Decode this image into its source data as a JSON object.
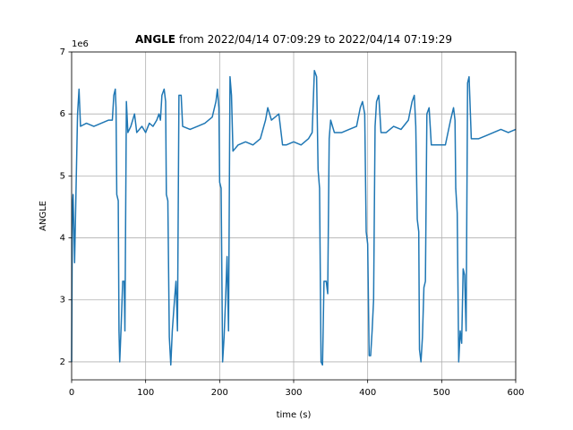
{
  "chart_data": {
    "type": "line",
    "title_bold": "ANGLE",
    "title_rest": " from 2022/04/14 07:09:29 to 2022/04/14 07:19:29",
    "x_label": "time (s)",
    "y_label": "ANGLE",
    "y_offset_label": "1e6",
    "color": "#1f77b4",
    "grid": true,
    "xlim": [
      0,
      600
    ],
    "xticks": [
      0,
      100,
      200,
      300,
      400,
      500,
      600
    ],
    "ylim": [
      1.71,
      7
    ],
    "yticks": [
      2,
      3,
      4,
      5,
      6,
      7
    ],
    "x": [
      0,
      1,
      2,
      4,
      6,
      8,
      10,
      12,
      20,
      30,
      40,
      50,
      55,
      57,
      59,
      60,
      61,
      63,
      64,
      65,
      67,
      69,
      71,
      72,
      74,
      76,
      80,
      85,
      88,
      95,
      100,
      105,
      110,
      115,
      118,
      120,
      122,
      125,
      127,
      128,
      130,
      132,
      134,
      136,
      139,
      141,
      143,
      145,
      148,
      150,
      160,
      170,
      180,
      190,
      195,
      197,
      199,
      200,
      202,
      204,
      206,
      208,
      210,
      212,
      214,
      216,
      218,
      225,
      235,
      245,
      255,
      262,
      265,
      270,
      275,
      280,
      285,
      290,
      300,
      310,
      320,
      325,
      328,
      331,
      333,
      335,
      337,
      339,
      341,
      344,
      346,
      348,
      350,
      355,
      365,
      375,
      385,
      390,
      393,
      396,
      398,
      400,
      402,
      404,
      406,
      408,
      410,
      412,
      415,
      418,
      425,
      435,
      445,
      455,
      460,
      463,
      465,
      467,
      469,
      470,
      472,
      474,
      476,
      478,
      480,
      483,
      486,
      495,
      505,
      512,
      516,
      518,
      519,
      521,
      523,
      525,
      527,
      529,
      531,
      533,
      535,
      537,
      540,
      550,
      560,
      570,
      580,
      590,
      600
    ],
    "values": [
      2.0,
      4.5,
      4.7,
      3.6,
      4.8,
      6.0,
      6.4,
      5.8,
      5.85,
      5.8,
      5.85,
      5.9,
      5.9,
      6.3,
      6.4,
      6.1,
      4.7,
      4.6,
      2.5,
      2.0,
      2.6,
      3.3,
      3.3,
      2.5,
      6.2,
      5.7,
      5.8,
      6.0,
      5.7,
      5.8,
      5.7,
      5.85,
      5.8,
      5.9,
      6.0,
      5.9,
      6.3,
      6.4,
      6.2,
      4.7,
      4.6,
      2.4,
      1.95,
      2.5,
      3.0,
      3.3,
      2.5,
      6.3,
      6.3,
      5.8,
      5.75,
      5.8,
      5.85,
      5.95,
      6.2,
      6.4,
      6.1,
      4.9,
      4.8,
      2.0,
      2.4,
      3.0,
      3.7,
      2.5,
      6.6,
      6.3,
      5.4,
      5.5,
      5.55,
      5.5,
      5.6,
      5.9,
      6.1,
      5.9,
      5.95,
      6.0,
      5.5,
      5.5,
      5.55,
      5.5,
      5.6,
      5.7,
      6.7,
      6.6,
      5.1,
      4.8,
      2.0,
      1.95,
      3.3,
      3.3,
      3.1,
      5.6,
      5.9,
      5.7,
      5.7,
      5.75,
      5.8,
      6.1,
      6.2,
      6.0,
      4.1,
      3.9,
      2.1,
      2.1,
      2.5,
      3.0,
      5.8,
      6.2,
      6.3,
      5.7,
      5.7,
      5.8,
      5.75,
      5.9,
      6.2,
      6.3,
      5.8,
      4.3,
      4.1,
      2.2,
      2.0,
      2.4,
      3.2,
      3.3,
      6.0,
      6.1,
      5.5,
      5.5,
      5.5,
      5.9,
      6.1,
      5.9,
      4.8,
      4.4,
      2.0,
      2.5,
      2.3,
      3.5,
      3.4,
      2.5,
      6.5,
      6.6,
      5.6,
      5.6,
      5.65,
      5.7,
      5.75,
      5.7,
      5.75
    ]
  }
}
